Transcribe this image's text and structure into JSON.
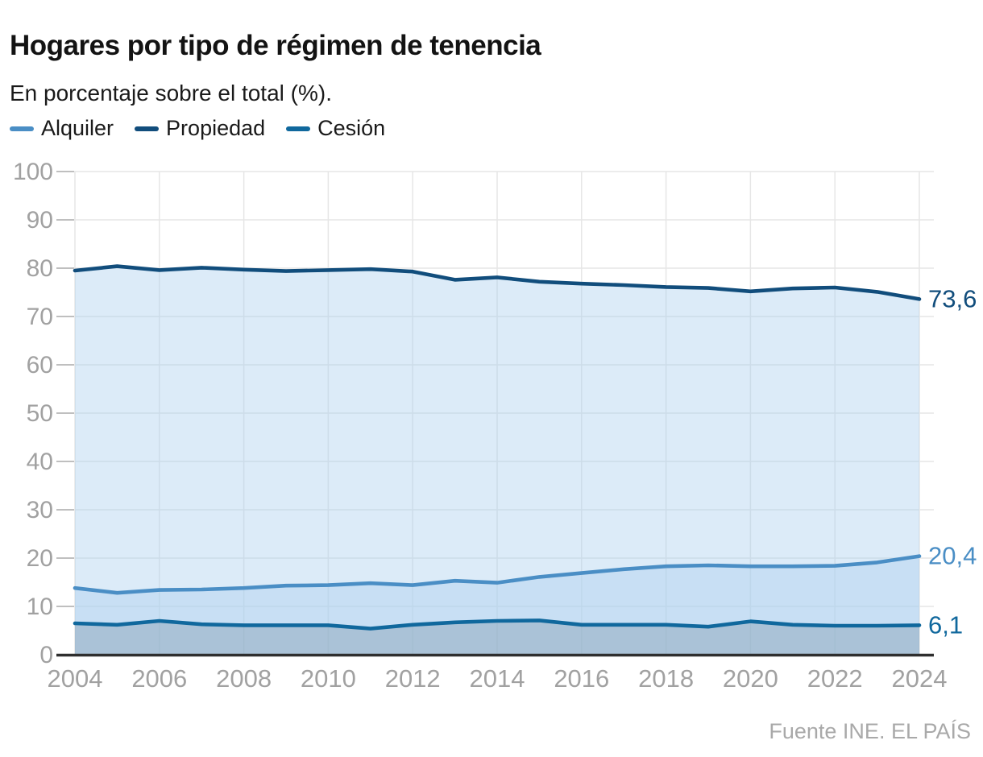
{
  "header": {
    "title": "Hogares por tipo de régimen de tenencia",
    "subtitle": "En porcentaje sobre el total (%)."
  },
  "legend": [
    {
      "label": "Alquiler",
      "color": "#4a8ec5"
    },
    {
      "label": "Propiedad",
      "color": "#114d7c"
    },
    {
      "label": "Cesión",
      "color": "#10689d"
    }
  ],
  "footer": {
    "source": "Fuente INE. EL PAÍS"
  },
  "colors": {
    "grid": "#e6e6e6",
    "tick": "#bfbfbf",
    "axis": "#2e2e2e",
    "axis_label": "#a1a1a1",
    "fill_blue": "rgba(171,208,238,0.42)",
    "fill_gray": "rgba(104,128,150,0.30)"
  },
  "chart_data": {
    "type": "area",
    "title": "Hogares por tipo de régimen de tenencia",
    "subtitle": "En porcentaje sobre el total (%).",
    "x": [
      2004,
      2005,
      2006,
      2007,
      2008,
      2009,
      2010,
      2011,
      2012,
      2013,
      2014,
      2015,
      2016,
      2017,
      2018,
      2019,
      2020,
      2021,
      2022,
      2023,
      2024
    ],
    "series": [
      {
        "name": "Propiedad",
        "color": "#114d7c",
        "fill": "blue",
        "end_label": "73,6",
        "values": [
          79.5,
          80.4,
          79.6,
          80.1,
          79.7,
          79.4,
          79.6,
          79.8,
          79.3,
          77.6,
          78.1,
          77.2,
          76.8,
          76.5,
          76.1,
          75.9,
          75.2,
          75.8,
          76.0,
          75.1,
          73.6
        ]
      },
      {
        "name": "Alquiler",
        "color": "#4a8ec5",
        "fill": "blue",
        "end_label": "20,4",
        "values": [
          13.8,
          12.8,
          13.4,
          13.5,
          13.8,
          14.3,
          14.4,
          14.8,
          14.4,
          15.3,
          14.9,
          16.1,
          16.9,
          17.7,
          18.3,
          18.5,
          18.3,
          18.3,
          18.4,
          19.1,
          20.4
        ]
      },
      {
        "name": "Cesión",
        "color": "#10689d",
        "fill": "gray",
        "end_label": "6,1",
        "values": [
          6.5,
          6.2,
          7.0,
          6.3,
          6.1,
          6.1,
          6.1,
          5.4,
          6.2,
          6.7,
          7.0,
          7.1,
          6.2,
          6.2,
          6.2,
          5.8,
          6.9,
          6.2,
          6.0,
          6.0,
          6.1
        ]
      }
    ],
    "ylim": [
      0,
      100
    ],
    "yticks": [
      0,
      10,
      20,
      30,
      40,
      50,
      60,
      70,
      80,
      90,
      100
    ],
    "xticks": [
      2004,
      2006,
      2008,
      2010,
      2012,
      2014,
      2016,
      2018,
      2020,
      2022,
      2024
    ],
    "grid": true,
    "legend_position": "top-left"
  }
}
